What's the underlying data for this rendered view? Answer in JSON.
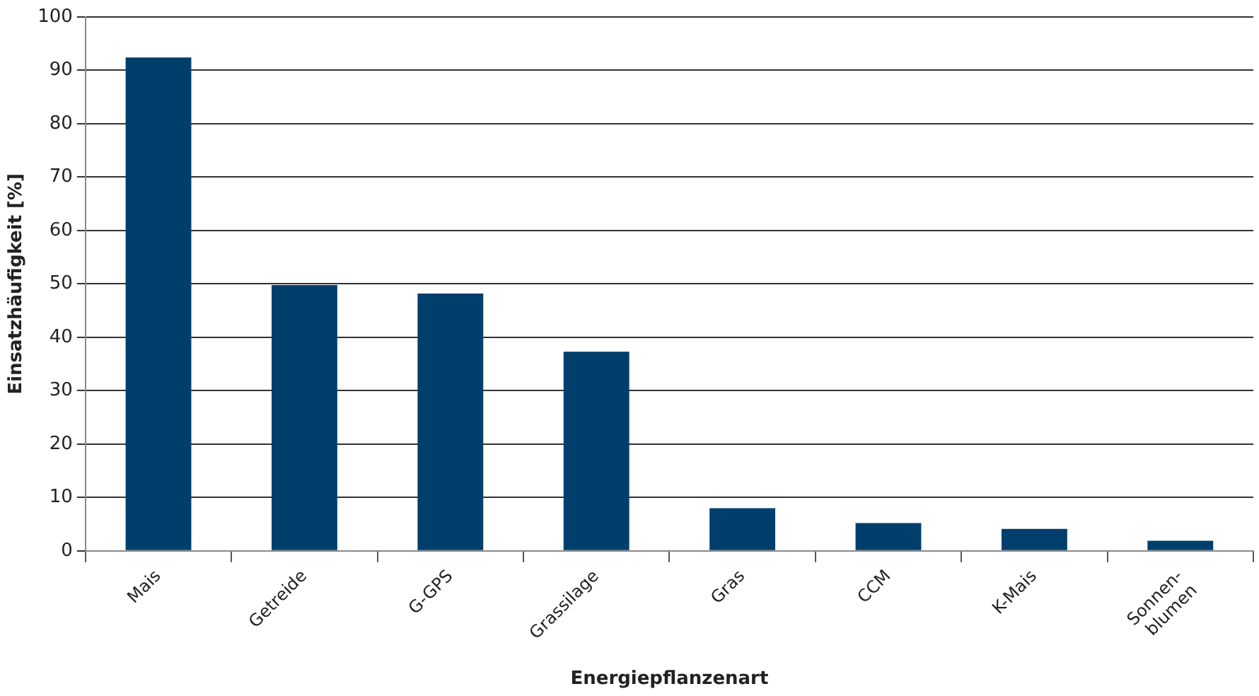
{
  "chart_data": {
    "type": "bar",
    "xlabel": "Energiepflanzenart",
    "ylabel": "Einsatzhäufigkeit [%]",
    "categories": [
      "Mais",
      "Getreide",
      "G-GPS",
      "Grassilage",
      "Gras",
      "CCM",
      "K-Mais",
      "Sonnen-\nblumen"
    ],
    "values": [
      92.4,
      49.8,
      48.2,
      37.3,
      8,
      5.2,
      4.1,
      1.9
    ],
    "color": "#003f6b",
    "ylim": [
      0,
      100
    ],
    "yticks": [
      0,
      10,
      20,
      30,
      40,
      50,
      60,
      70,
      80,
      90,
      100
    ],
    "grid": "y",
    "legend": false
  }
}
